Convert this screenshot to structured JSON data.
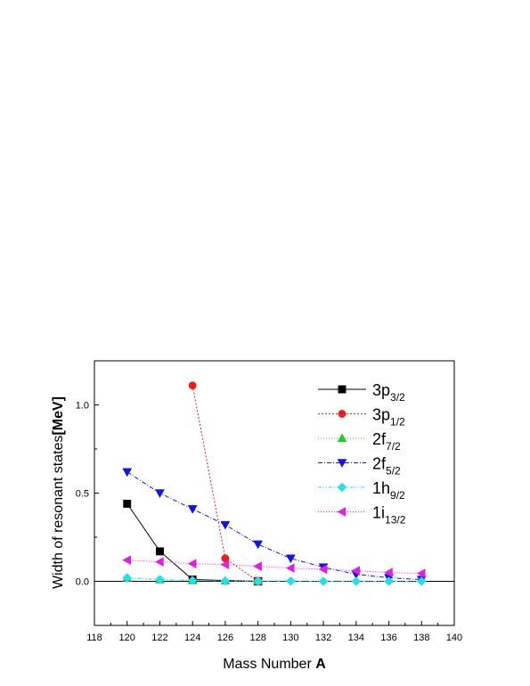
{
  "chart_data": {
    "type": "line",
    "xlabel_text": "Mass Number ",
    "xlabel_bold": "A",
    "ylabel_text": "Width of resonant states",
    "ylabel_bold": "[MeV]",
    "xlim": [
      118,
      140
    ],
    "ylim": [
      -0.25,
      1.25
    ],
    "xticks": [
      "118",
      "120",
      "122",
      "124",
      "126",
      "128",
      "130",
      "132",
      "134",
      "136",
      "138",
      "140"
    ],
    "yticks": [
      "0.0",
      "0.5",
      "1.0"
    ],
    "zero_line": true,
    "grid": false,
    "legend_placement": "top-right",
    "series": [
      {
        "name_main": "3p",
        "name_sub": "3/2",
        "color": "#000000",
        "marker": "square",
        "dash": "",
        "x": [
          120,
          122,
          124,
          126,
          128
        ],
        "y": [
          0.44,
          0.17,
          0.01,
          null,
          0.0
        ],
        "open": [
          false,
          false,
          false,
          false,
          true
        ]
      },
      {
        "name_main": "3p",
        "name_sub": "1/2",
        "color": "#ee1c1c",
        "marker": "circle",
        "dash": "2,2",
        "x": [
          124,
          126,
          128
        ],
        "y": [
          1.11,
          0.13,
          0.0
        ],
        "open": [
          false,
          false,
          true
        ]
      },
      {
        "name_main": "2f",
        "name_sub": "7/2",
        "color": "#22cc22",
        "marker": "triangle-up",
        "dash": "1,2",
        "x": [
          120,
          122,
          124,
          126,
          128
        ],
        "y": [
          0.02,
          0.01,
          0.005,
          0.003,
          0.002
        ],
        "open": [
          false,
          false,
          false,
          false,
          false
        ]
      },
      {
        "name_main": "2f",
        "name_sub": "5/2",
        "color": "#1515e0",
        "marker": "triangle-down",
        "dash": "5,2,1,2",
        "x": [
          120,
          122,
          124,
          126,
          128,
          130,
          132,
          134,
          136,
          138
        ],
        "y": [
          0.62,
          0.5,
          0.41,
          0.32,
          0.21,
          0.13,
          0.08,
          0.04,
          0.02,
          0.01
        ],
        "open": [
          false,
          false,
          false,
          false,
          false,
          false,
          false,
          false,
          false,
          false
        ]
      },
      {
        "name_main": "1h",
        "name_sub": "9/2",
        "color": "#22e0e8",
        "marker": "diamond",
        "dash": "4,2,1,2,1,2",
        "x": [
          120,
          122,
          124,
          126,
          128,
          130,
          132,
          134,
          136,
          138
        ],
        "y": [
          0.02,
          0.01,
          0.005,
          0.002,
          0.001,
          0.001,
          0.0,
          0.0,
          0.0,
          0.0
        ],
        "open": [
          false,
          false,
          false,
          false,
          false,
          false,
          false,
          false,
          false,
          false
        ]
      },
      {
        "name_main": "1i",
        "name_sub": "13/2",
        "color": "#e020e0",
        "marker": "triangle-left",
        "dash": "1,2",
        "x": [
          120,
          122,
          124,
          126,
          128,
          130,
          132,
          134,
          136,
          138
        ],
        "y": [
          0.12,
          0.11,
          0.1,
          0.095,
          0.085,
          0.075,
          0.068,
          0.06,
          0.05,
          0.045
        ],
        "open": [
          false,
          false,
          false,
          false,
          false,
          false,
          false,
          false,
          false,
          false
        ]
      }
    ]
  }
}
